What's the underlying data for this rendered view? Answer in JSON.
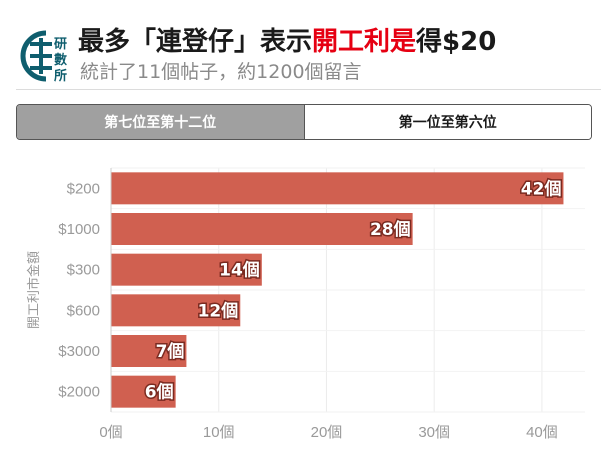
{
  "header": {
    "logo_text": "研數所",
    "title_prefix": "最多「連登仔」表示",
    "title_highlight": "開工利是",
    "title_suffix": "得$20",
    "subtitle": "統計了11個帖子，約1200個留言"
  },
  "tabs": [
    {
      "label": "第七位至第十二位",
      "active": true
    },
    {
      "label": "第一位至第六位",
      "active": false
    }
  ],
  "colors": {
    "bar": "#d06050",
    "highlight": "#e60012",
    "logo": "#0f5e6e"
  },
  "chart_data": {
    "type": "bar",
    "orientation": "horizontal",
    "categories": [
      "$200",
      "$1000",
      "$300",
      "$600",
      "$3000",
      "$2000"
    ],
    "values": [
      42,
      28,
      14,
      12,
      7,
      6
    ],
    "value_labels": [
      "42個",
      "28個",
      "14個",
      "12個",
      "7個",
      "6個"
    ],
    "ylabel": "開工利市金額",
    "xlabel": "",
    "xlim": [
      0,
      44
    ],
    "xticks": [
      0,
      10,
      20,
      30,
      40
    ],
    "xtick_labels": [
      "0個",
      "10個",
      "20個",
      "30個",
      "40個"
    ],
    "grid": true
  }
}
